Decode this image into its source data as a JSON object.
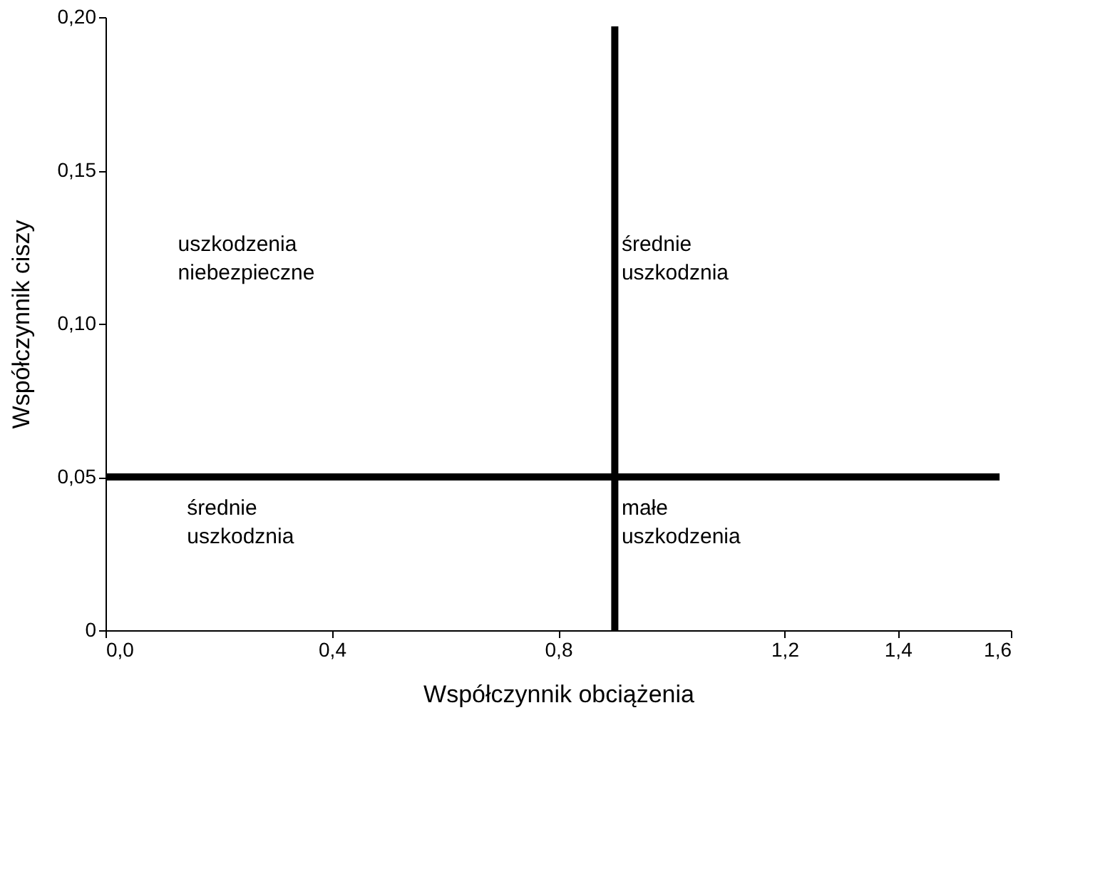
{
  "chart_data": {
    "type": "line",
    "xlabel": "Współczynnik obciążenia",
    "ylabel": "Współczynnik ciszy",
    "xlim": [
      0,
      1.6
    ],
    "ylim": [
      0,
      0.2
    ],
    "xticks": [
      {
        "value": 0,
        "label": "0,0"
      },
      {
        "value": 0.4,
        "label": "0,4"
      },
      {
        "value": 0.8,
        "label": "0,8"
      },
      {
        "value": 1.2,
        "label": "1,2"
      },
      {
        "value": 1.4,
        "label": "1,4"
      },
      {
        "value": 1.6,
        "label": "1,6"
      }
    ],
    "yticks": [
      {
        "value": 0,
        "label": "0"
      },
      {
        "value": 0.05,
        "label": "0,05"
      },
      {
        "value": 0.1,
        "label": "0,10"
      },
      {
        "value": 0.15,
        "label": "0,15"
      },
      {
        "value": 0.2,
        "label": "0,20"
      }
    ],
    "series": [
      {
        "color": "#000000",
        "x": [
          0,
          1.58
        ],
        "values": [
          0.05,
          0.05
        ]
      },
      {
        "color": "#000000",
        "x": [
          0.9,
          0.9
        ],
        "values": [
          0,
          0.197
        ]
      }
    ],
    "annotations": [
      "uszkodzenia\nniebezpieczne",
      "średnie\nuszkodznia",
      "średnie\nuszkodznia",
      "małe\nuszkodzenia"
    ],
    "grid": false,
    "marker": "none",
    "line_style": "solid"
  }
}
